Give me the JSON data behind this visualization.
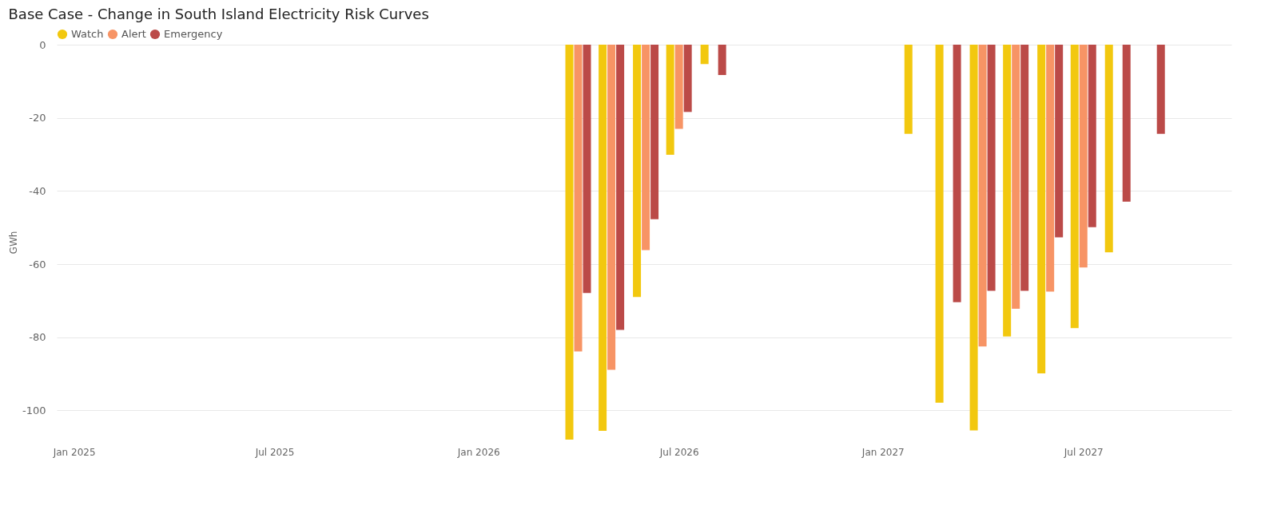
{
  "chart_data": {
    "type": "bar",
    "title": "Base Case - Change in South Island Electricity Risk Curves",
    "ylabel": "GWh",
    "x": [
      "2026-04",
      "2026-05",
      "2026-06",
      "2026-07",
      "2026-08",
      "2027-02",
      "2027-03",
      "2027-04",
      "2027-05",
      "2027-06",
      "2027-07",
      "2027-08",
      "2027-09"
    ],
    "series": [
      {
        "name": "Watch",
        "color": "#f2c80f",
        "values": [
          -108,
          -105.6,
          -69,
          -30.1,
          -5.3,
          -24.4,
          -97.9,
          -105.5,
          -79.8,
          -89.9,
          -77.5,
          -56.8,
          null
        ]
      },
      {
        "name": "Alert",
        "color": "#f79465",
        "values": [
          -83.9,
          -88.9,
          -56.2,
          -23,
          null,
          null,
          null,
          -82.5,
          -72.2,
          -67.5,
          -60.9,
          null,
          null
        ]
      },
      {
        "name": "Emergency",
        "color": "#bb4a48",
        "values": [
          -67.9,
          -78,
          -47.7,
          -18.4,
          -8.3,
          null,
          -70.4,
          -67.3,
          -67.3,
          -52.7,
          -49.9,
          -42.9,
          -24.4
        ]
      }
    ],
    "xlim": [
      "2024-12-20",
      "2027-11-08"
    ],
    "xticks": [
      {
        "value": "2025-01",
        "label": "Jan 2025"
      },
      {
        "value": "2025-07",
        "label": "Jul 2025"
      },
      {
        "value": "2026-01",
        "label": "Jan 2026"
      },
      {
        "value": "2026-07",
        "label": "Jul 2026"
      },
      {
        "value": "2027-01",
        "label": "Jan 2027"
      },
      {
        "value": "2027-07",
        "label": "Jul 2027"
      }
    ],
    "ylim": [
      -108,
      0
    ],
    "yticks": [
      0,
      -20,
      -40,
      -60,
      -80,
      -100
    ],
    "grid": "y",
    "legend": "top left"
  }
}
